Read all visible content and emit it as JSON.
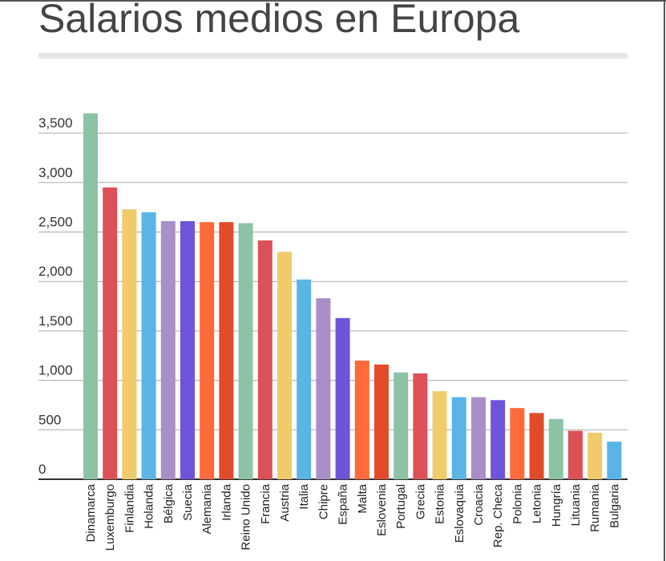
{
  "chart_data": {
    "type": "bar",
    "title": "Salarios medios en Europa",
    "categories": [
      "Dinamarca",
      "Luxemburgo",
      "Finlandia",
      "Holanda",
      "Bélgica",
      "Suecia",
      "Alemania",
      "Irlanda",
      "Reino Unido",
      "Francia",
      "Austria",
      "Italia",
      "Chipre",
      "España",
      "Malta",
      "Eslovenia",
      "Portugal",
      "Grecia",
      "Estonia",
      "Eslovaquia",
      "Croacia",
      "Rep. Checa",
      "Polonia",
      "Letonia",
      "Hungría",
      "Lituania",
      "Rumania",
      "Bulgaria"
    ],
    "values": [
      3700,
      2950,
      2730,
      2700,
      2610,
      2610,
      2600,
      2600,
      2590,
      2415,
      2300,
      2020,
      1830,
      1630,
      1200,
      1160,
      1080,
      1070,
      890,
      830,
      830,
      800,
      720,
      670,
      610,
      490,
      470,
      380
    ],
    "colors": [
      "#8dc3a5",
      "#db5157",
      "#f0cb6b",
      "#5ab4e6",
      "#a98ec8",
      "#6f53d8",
      "#ff6a3a",
      "#e24b2a"
    ],
    "ylim": [
      0,
      3600
    ],
    "yticks": [
      0,
      {
        "value": 500,
        "label": "500"
      },
      {
        "value": 1000,
        "label": "1,000"
      },
      {
        "value": 1500,
        "label": "1,500"
      },
      {
        "value": 2000,
        "label": "2,000"
      },
      {
        "value": 2500,
        "label": "2,500"
      },
      {
        "value": 3000,
        "label": "3,000"
      },
      {
        "value": 3500,
        "label": "3,500"
      }
    ],
    "grid": true
  }
}
